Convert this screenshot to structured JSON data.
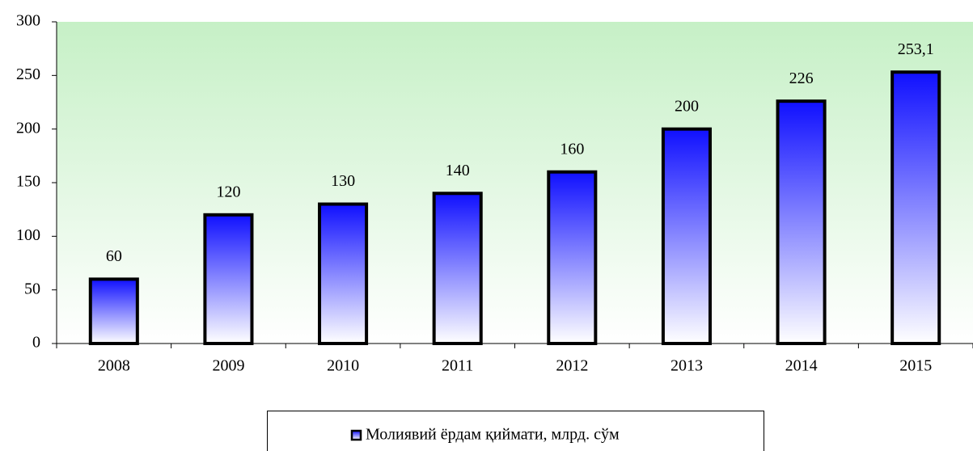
{
  "chart_data": {
    "type": "bar",
    "categories": [
      "2008",
      "2009",
      "2010",
      "2011",
      "2012",
      "2013",
      "2014",
      "2015"
    ],
    "series": [
      {
        "name": "Молиявий ёрдам қиймати, млрд. сўм",
        "color": "#1010ff",
        "values": [
          60,
          120,
          130,
          140,
          160,
          200,
          226,
          253.1
        ],
        "value_labels": [
          "60",
          "120",
          "130",
          "140",
          "160",
          "200",
          "226",
          "253,1"
        ]
      }
    ],
    "ylim": [
      0,
      300
    ],
    "yticks": [
      0,
      50,
      100,
      150,
      200,
      250,
      300
    ],
    "grid": false,
    "legend": "bottom"
  }
}
